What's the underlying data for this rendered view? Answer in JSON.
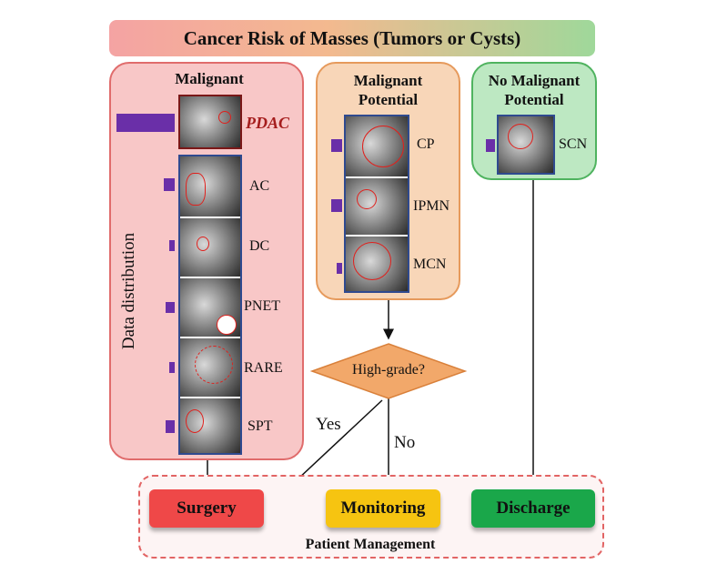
{
  "title": "Cancer Risk of Masses (Tumors or Cysts)",
  "panels": {
    "malignant": {
      "heading": "Malignant",
      "axis_label": "Data distribution",
      "classes": [
        "PDAC",
        "AC",
        "DC",
        "PNET",
        "RARE",
        "SPT"
      ]
    },
    "potential": {
      "heading_line1": "Malignant",
      "heading_line2": "Potential",
      "classes": [
        "CP",
        "IPMN",
        "MCN"
      ]
    },
    "none": {
      "heading_line1": "No Malignant",
      "heading_line2": "Potential",
      "classes": [
        "SCN"
      ]
    }
  },
  "decision": {
    "question": "High-grade?",
    "yes": "Yes",
    "no": "No"
  },
  "management": {
    "label": "Patient Management",
    "surgery": "Surgery",
    "monitoring": "Monitoring",
    "discharge": "Discharge"
  },
  "colors": {
    "bar": "#6a2fa8",
    "scan_border": "#2f4a8f",
    "lesion": "#e0201c"
  }
}
